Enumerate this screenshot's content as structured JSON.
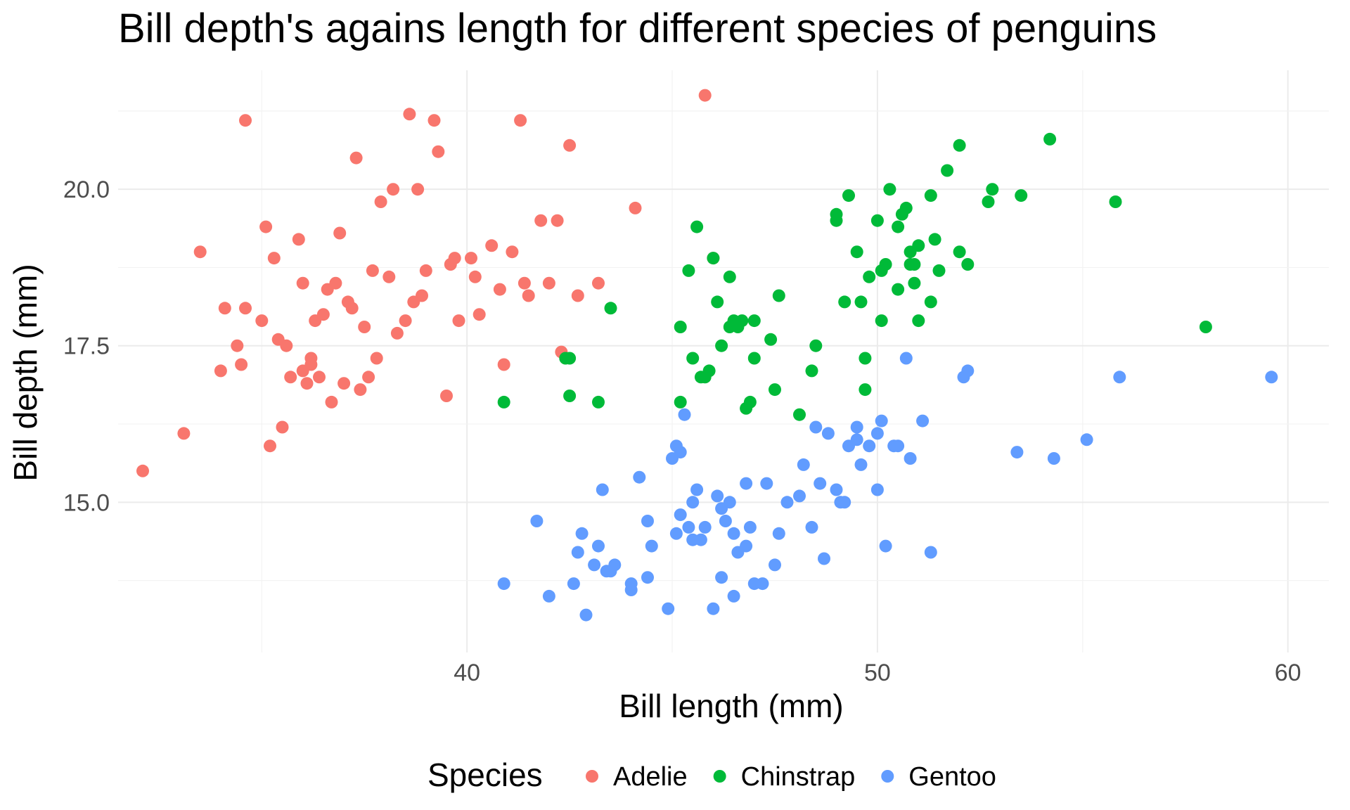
{
  "chart_data": {
    "type": "scatter",
    "title": "Bill depth's agains length for different species of penguins",
    "xlabel": "Bill length (mm)",
    "ylabel": "Bill depth (mm)",
    "xlim": [
      31.5,
      61.0
    ],
    "ylim": [
      12.6,
      21.9
    ],
    "x_ticks": [
      40,
      50,
      60
    ],
    "x_tick_labels": [
      "40",
      "50",
      "60"
    ],
    "y_ticks": [
      15.0,
      17.5,
      20.0
    ],
    "y_tick_labels": [
      "15.0",
      "17.5",
      "20.0"
    ],
    "legend": {
      "title": "Species",
      "position": "bottom"
    },
    "grid": true,
    "series": [
      {
        "name": "Adelie",
        "color": "#F8766D",
        "x": [
          32.1,
          33.1,
          33.5,
          34.0,
          34.1,
          34.5,
          34.6,
          34.6,
          35.0,
          35.1,
          35.2,
          35.3,
          35.5,
          35.6,
          35.7,
          35.9,
          36.0,
          36.0,
          36.2,
          36.2,
          36.4,
          36.5,
          36.6,
          36.7,
          36.8,
          36.9,
          37.0,
          37.2,
          37.3,
          37.6,
          37.7,
          37.8,
          37.9,
          38.1,
          38.2,
          38.5,
          38.6,
          38.8,
          39.0,
          39.2,
          39.5,
          39.6,
          39.7,
          40.1,
          40.3,
          40.6,
          40.8,
          41.1,
          41.4,
          41.5,
          42.0,
          42.2,
          42.5,
          42.7,
          43.2,
          44.1,
          45.8,
          46.0,
          35.4,
          36.3,
          37.1,
          37.5,
          38.9,
          39.8,
          40.2,
          41.3,
          41.8,
          38.3,
          37.4,
          36.1,
          39.3,
          40.9,
          34.4,
          42.3,
          38.7
        ],
        "y": [
          15.5,
          16.1,
          19.0,
          17.1,
          18.1,
          17.2,
          21.1,
          18.1,
          17.9,
          19.4,
          15.9,
          18.9,
          16.2,
          17.5,
          17.0,
          19.2,
          17.1,
          18.5,
          17.3,
          17.2,
          17.0,
          18.0,
          18.4,
          16.6,
          18.5,
          19.3,
          16.9,
          18.1,
          20.5,
          17.0,
          18.7,
          17.3,
          19.8,
          18.6,
          20.0,
          17.9,
          21.2,
          20.0,
          18.7,
          21.1,
          16.7,
          18.8,
          18.9,
          18.9,
          18.0,
          19.1,
          18.4,
          19.0,
          18.5,
          18.3,
          18.5,
          19.5,
          20.7,
          18.3,
          18.5,
          19.7,
          21.5,
          18.9,
          17.6,
          17.9,
          18.2,
          17.8,
          18.3,
          17.9,
          18.6,
          21.1,
          19.5,
          17.7,
          16.8,
          16.9,
          20.6,
          17.2,
          17.5,
          17.4,
          18.2
        ]
      },
      {
        "name": "Chinstrap",
        "color": "#00BA38",
        "x": [
          40.9,
          42.4,
          42.5,
          42.5,
          43.2,
          43.5,
          45.2,
          45.2,
          45.4,
          45.6,
          45.7,
          45.9,
          46.0,
          46.1,
          46.2,
          46.4,
          46.4,
          46.5,
          46.6,
          46.7,
          46.8,
          47.0,
          47.5,
          47.6,
          48.1,
          48.5,
          49.0,
          49.0,
          49.2,
          49.3,
          49.5,
          49.6,
          49.7,
          49.8,
          50.0,
          50.1,
          50.2,
          50.3,
          50.5,
          50.6,
          50.7,
          50.8,
          50.9,
          51.0,
          51.3,
          51.3,
          51.4,
          51.5,
          51.7,
          52.0,
          52.0,
          52.2,
          52.7,
          52.8,
          53.5,
          54.2,
          55.8,
          58.0,
          46.9,
          47.0,
          45.5,
          50.5,
          51.0,
          49.7,
          50.9,
          50.8,
          48.4,
          47.4,
          50.1,
          45.8
        ],
        "y": [
          16.6,
          17.3,
          16.7,
          17.3,
          16.6,
          18.1,
          17.8,
          16.6,
          18.7,
          19.4,
          17.0,
          17.1,
          18.9,
          18.2,
          17.5,
          17.8,
          18.6,
          17.9,
          17.8,
          17.9,
          16.5,
          17.3,
          16.8,
          18.3,
          16.4,
          17.5,
          19.5,
          19.6,
          18.2,
          19.9,
          19.0,
          18.2,
          17.3,
          18.6,
          19.5,
          17.9,
          18.8,
          20.0,
          18.4,
          19.6,
          19.7,
          19.0,
          18.5,
          19.1,
          18.2,
          19.9,
          19.2,
          18.7,
          20.3,
          19.0,
          20.7,
          18.8,
          19.8,
          20.0,
          19.9,
          20.8,
          19.8,
          17.8,
          16.6,
          17.9,
          17.3,
          19.4,
          17.9,
          16.8,
          18.8,
          18.8,
          17.1,
          17.6,
          18.7,
          17.0
        ]
      },
      {
        "name": "Gentoo",
        "color": "#619CFF",
        "x": [
          40.9,
          41.7,
          42.0,
          42.6,
          42.7,
          42.8,
          42.9,
          43.1,
          43.2,
          43.3,
          43.5,
          43.6,
          44.0,
          44.4,
          44.5,
          44.9,
          45.1,
          45.2,
          45.2,
          45.3,
          45.4,
          45.5,
          45.5,
          45.7,
          45.8,
          46.1,
          46.2,
          46.2,
          46.4,
          46.5,
          46.5,
          46.6,
          46.8,
          46.8,
          47.2,
          47.3,
          47.5,
          47.8,
          48.1,
          48.2,
          48.4,
          48.6,
          48.7,
          49.0,
          49.1,
          49.2,
          49.3,
          49.5,
          49.6,
          49.8,
          50.0,
          50.0,
          50.2,
          50.4,
          50.5,
          50.7,
          50.8,
          51.1,
          51.3,
          52.1,
          52.2,
          53.4,
          54.3,
          55.1,
          55.9,
          59.6,
          43.4,
          44.4,
          45.0,
          45.6,
          46.3,
          47.0,
          47.6,
          48.5,
          49.5,
          50.1,
          44.2,
          45.1,
          44.0,
          46.0,
          46.9,
          48.8
        ],
        "y": [
          13.7,
          14.7,
          13.5,
          13.7,
          14.2,
          14.5,
          13.2,
          14.0,
          14.3,
          15.2,
          13.9,
          14.0,
          13.6,
          14.7,
          14.3,
          13.3,
          14.5,
          14.8,
          15.8,
          16.4,
          14.6,
          14.4,
          15.0,
          14.4,
          14.6,
          15.1,
          13.8,
          14.9,
          15.0,
          14.5,
          13.5,
          14.2,
          14.3,
          15.3,
          13.7,
          15.3,
          14.0,
          15.0,
          15.1,
          15.6,
          14.6,
          15.3,
          14.1,
          15.2,
          15.0,
          15.0,
          15.9,
          16.2,
          15.6,
          15.9,
          16.1,
          15.2,
          14.3,
          15.9,
          15.9,
          17.3,
          15.7,
          16.3,
          14.2,
          17.0,
          17.1,
          15.8,
          15.7,
          16.0,
          17.0,
          17.0,
          13.9,
          13.8,
          15.7,
          15.2,
          14.7,
          13.7,
          14.5,
          16.2,
          16.0,
          16.3,
          15.4,
          15.9,
          13.7,
          13.3,
          14.6,
          16.1
        ]
      }
    ]
  }
}
